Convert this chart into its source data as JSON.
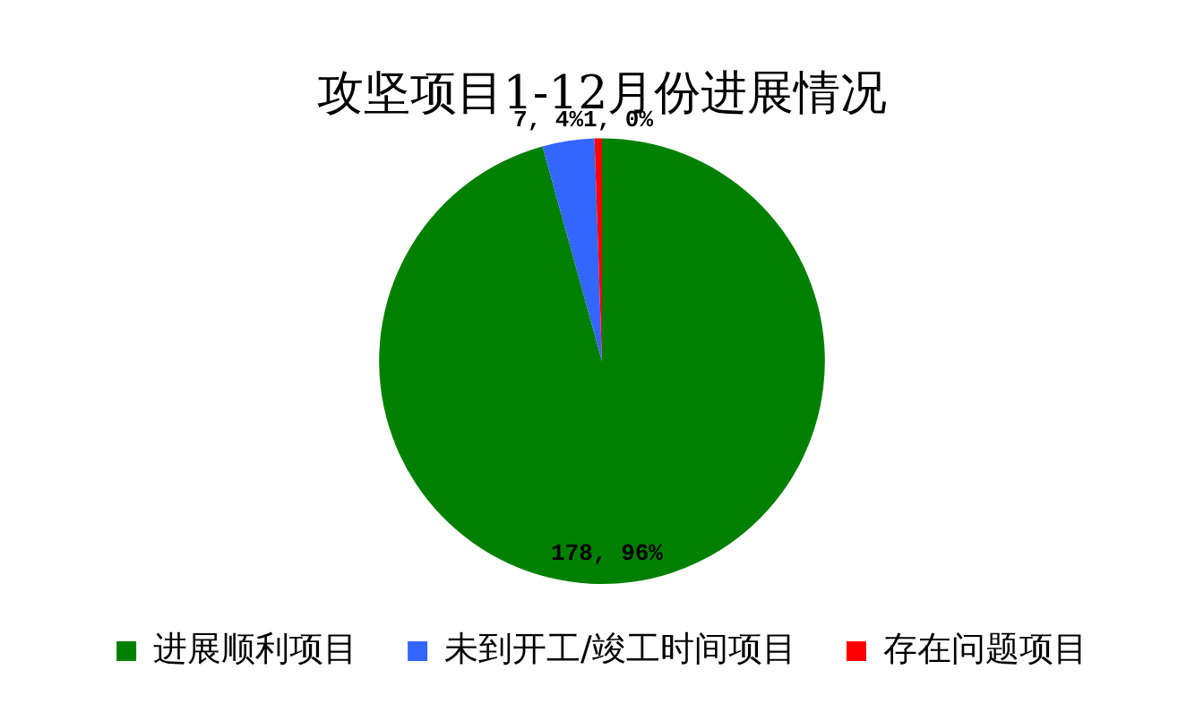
{
  "chart_data": {
    "type": "pie",
    "title": "攻坚项目1-12月份进展情况",
    "categories": [
      "进展顺利项目",
      "未到开工/竣工时间项目",
      "存在问题项目"
    ],
    "values": [
      178,
      7,
      1
    ],
    "colors": [
      "#008000",
      "#3366ff",
      "#ff0000"
    ],
    "value_labels": [
      "178, 96%",
      "7, 4%",
      "1, 0%"
    ],
    "legend": "bottom"
  }
}
